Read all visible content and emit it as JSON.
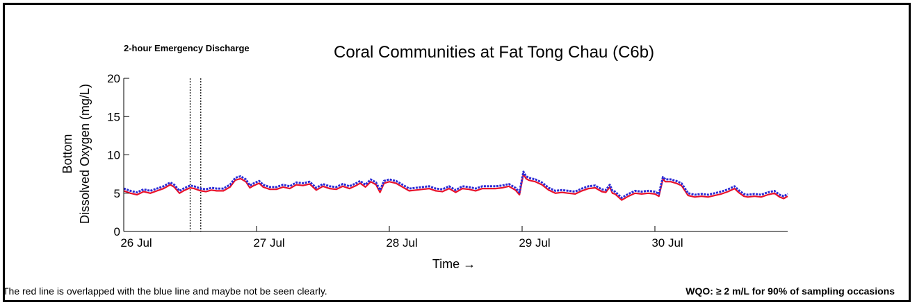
{
  "header": {
    "emergency_label": "2-hour Emergency Discharge",
    "title": "Coral Communities at Fat Tong Chau (C6b)"
  },
  "footer": {
    "note": "The red line is overlapped with the blue line and maybe not be seen clearly.",
    "wqo": "WQO: ≥ 2 m/L for 90% of sampling occasions"
  },
  "colors": {
    "red_series": "#e8102a",
    "blue_series": "#2b2bd6",
    "axes": "#000000"
  },
  "chart_data": {
    "type": "line",
    "title": "Coral Communities at Fat Tong Chau (C6b)",
    "xlabel": "Time →",
    "ylabel_line1": "Bottom",
    "ylabel_line2": "Dissolved Oxygen (mg/L)",
    "xlim": [
      26.0,
      31.0
    ],
    "ylim": [
      0,
      20
    ],
    "x_ticks": [
      {
        "value": 26,
        "label": "26 Jul"
      },
      {
        "value": 27,
        "label": "27 Jul"
      },
      {
        "value": 28,
        "label": "28 Jul"
      },
      {
        "value": 29,
        "label": "29 Jul"
      },
      {
        "value": 30,
        "label": "30 Jul"
      }
    ],
    "y_ticks": [
      0,
      5,
      10,
      15,
      20
    ],
    "grid": false,
    "discharge_lines": [
      26.5,
      26.58
    ],
    "series": [
      {
        "color": "#2b2bd6",
        "x": [
          26.0,
          26.05,
          26.1,
          26.15,
          26.2,
          26.25,
          26.3,
          26.35,
          26.38,
          26.42,
          26.45,
          26.5,
          26.53,
          26.58,
          26.62,
          26.66,
          26.7,
          26.75,
          26.8,
          26.84,
          26.88,
          26.92,
          26.95,
          26.98,
          27.02,
          27.05,
          27.1,
          27.15,
          27.2,
          27.25,
          27.3,
          27.35,
          27.4,
          27.45,
          27.5,
          27.55,
          27.6,
          27.65,
          27.7,
          27.75,
          27.78,
          27.82,
          27.86,
          27.9,
          27.93,
          27.96,
          28.0,
          28.05,
          28.1,
          28.15,
          28.2,
          28.25,
          28.3,
          28.35,
          28.4,
          28.45,
          28.5,
          28.55,
          28.6,
          28.65,
          28.7,
          28.75,
          28.8,
          28.85,
          28.9,
          28.95,
          28.98,
          29.01,
          29.03,
          29.05,
          29.1,
          29.15,
          29.2,
          29.25,
          29.3,
          29.35,
          29.4,
          29.45,
          29.5,
          29.55,
          29.6,
          29.63,
          29.66,
          29.68,
          29.7,
          29.75,
          29.8,
          29.85,
          29.9,
          29.95,
          30.0,
          30.03,
          30.06,
          30.08,
          30.12,
          30.16,
          30.2,
          30.25,
          30.3,
          30.35,
          30.4,
          30.45,
          30.5,
          30.55,
          30.6,
          30.63,
          30.67,
          30.7,
          30.75,
          30.8,
          30.85,
          30.9,
          30.94,
          30.97,
          31.0
        ],
        "y": [
          5.6,
          5.3,
          5.1,
          5.5,
          5.3,
          5.6,
          5.9,
          6.4,
          6.1,
          5.3,
          5.6,
          6.0,
          5.9,
          5.6,
          5.5,
          5.7,
          5.6,
          5.6,
          6.1,
          7.0,
          7.2,
          6.8,
          6.0,
          6.3,
          6.6,
          6.1,
          5.8,
          5.8,
          6.1,
          5.9,
          6.4,
          6.3,
          6.5,
          5.7,
          6.2,
          5.9,
          5.8,
          6.2,
          5.9,
          6.3,
          6.6,
          6.1,
          6.8,
          6.4,
          5.4,
          6.6,
          6.8,
          6.6,
          6.1,
          5.6,
          5.7,
          5.8,
          5.9,
          5.6,
          5.5,
          5.9,
          5.4,
          5.9,
          5.8,
          5.6,
          5.9,
          5.9,
          5.9,
          6.0,
          6.2,
          5.7,
          5.1,
          7.8,
          7.2,
          7.0,
          6.8,
          6.4,
          5.7,
          5.3,
          5.4,
          5.3,
          5.2,
          5.6,
          5.9,
          6.0,
          5.5,
          5.4,
          6.1,
          5.3,
          5.2,
          4.4,
          4.9,
          5.3,
          5.2,
          5.3,
          5.2,
          4.9,
          7.1,
          6.8,
          6.8,
          6.6,
          6.3,
          5.0,
          4.8,
          4.9,
          4.8,
          5.0,
          5.2,
          5.5,
          5.9,
          5.4,
          4.9,
          4.8,
          4.9,
          4.8,
          5.1,
          5.3,
          4.8,
          4.6,
          4.9
        ]
      },
      {
        "color": "#e8102a",
        "x": [
          26.0,
          26.05,
          26.1,
          26.15,
          26.2,
          26.25,
          26.3,
          26.35,
          26.38,
          26.42,
          26.45,
          26.5,
          26.53,
          26.58,
          26.62,
          26.66,
          26.7,
          26.75,
          26.8,
          26.84,
          26.88,
          26.92,
          26.95,
          26.98,
          27.02,
          27.05,
          27.1,
          27.15,
          27.2,
          27.25,
          27.3,
          27.35,
          27.4,
          27.45,
          27.5,
          27.55,
          27.6,
          27.65,
          27.7,
          27.75,
          27.78,
          27.82,
          27.86,
          27.9,
          27.93,
          27.96,
          28.0,
          28.05,
          28.1,
          28.15,
          28.2,
          28.25,
          28.3,
          28.35,
          28.4,
          28.45,
          28.5,
          28.55,
          28.6,
          28.65,
          28.7,
          28.75,
          28.8,
          28.85,
          28.9,
          28.95,
          28.98,
          29.01,
          29.03,
          29.05,
          29.1,
          29.15,
          29.2,
          29.25,
          29.3,
          29.35,
          29.4,
          29.45,
          29.5,
          29.55,
          29.6,
          29.63,
          29.66,
          29.68,
          29.7,
          29.75,
          29.8,
          29.85,
          29.9,
          29.95,
          30.0,
          30.03,
          30.06,
          30.08,
          30.12,
          30.16,
          30.2,
          30.25,
          30.3,
          30.35,
          30.4,
          30.45,
          30.5,
          30.55,
          30.6,
          30.63,
          30.67,
          30.7,
          30.75,
          30.8,
          30.85,
          30.9,
          30.94,
          30.97,
          31.0
        ],
        "y": [
          5.3,
          5.0,
          4.8,
          5.2,
          5.0,
          5.3,
          5.6,
          6.1,
          5.8,
          5.0,
          5.3,
          5.7,
          5.6,
          5.3,
          5.2,
          5.4,
          5.3,
          5.3,
          5.8,
          6.7,
          6.9,
          6.5,
          5.7,
          6.0,
          6.3,
          5.8,
          5.5,
          5.5,
          5.8,
          5.6,
          6.1,
          6.0,
          6.2,
          5.4,
          5.9,
          5.6,
          5.5,
          5.9,
          5.6,
          6.0,
          6.3,
          5.8,
          6.5,
          6.1,
          5.1,
          6.3,
          6.5,
          6.3,
          5.8,
          5.3,
          5.4,
          5.5,
          5.6,
          5.3,
          5.2,
          5.6,
          5.1,
          5.6,
          5.5,
          5.3,
          5.6,
          5.6,
          5.6,
          5.7,
          5.9,
          5.4,
          4.8,
          7.5,
          6.9,
          6.7,
          6.5,
          6.1,
          5.4,
          5.0,
          5.1,
          5.0,
          4.9,
          5.3,
          5.6,
          5.7,
          5.2,
          5.1,
          5.8,
          5.0,
          4.9,
          4.1,
          4.6,
          5.0,
          4.9,
          5.0,
          4.9,
          4.6,
          6.8,
          6.5,
          6.5,
          6.3,
          6.0,
          4.7,
          4.5,
          4.6,
          4.5,
          4.7,
          4.9,
          5.2,
          5.6,
          5.1,
          4.6,
          4.5,
          4.6,
          4.5,
          4.8,
          5.0,
          4.5,
          4.3,
          4.6
        ]
      }
    ]
  }
}
